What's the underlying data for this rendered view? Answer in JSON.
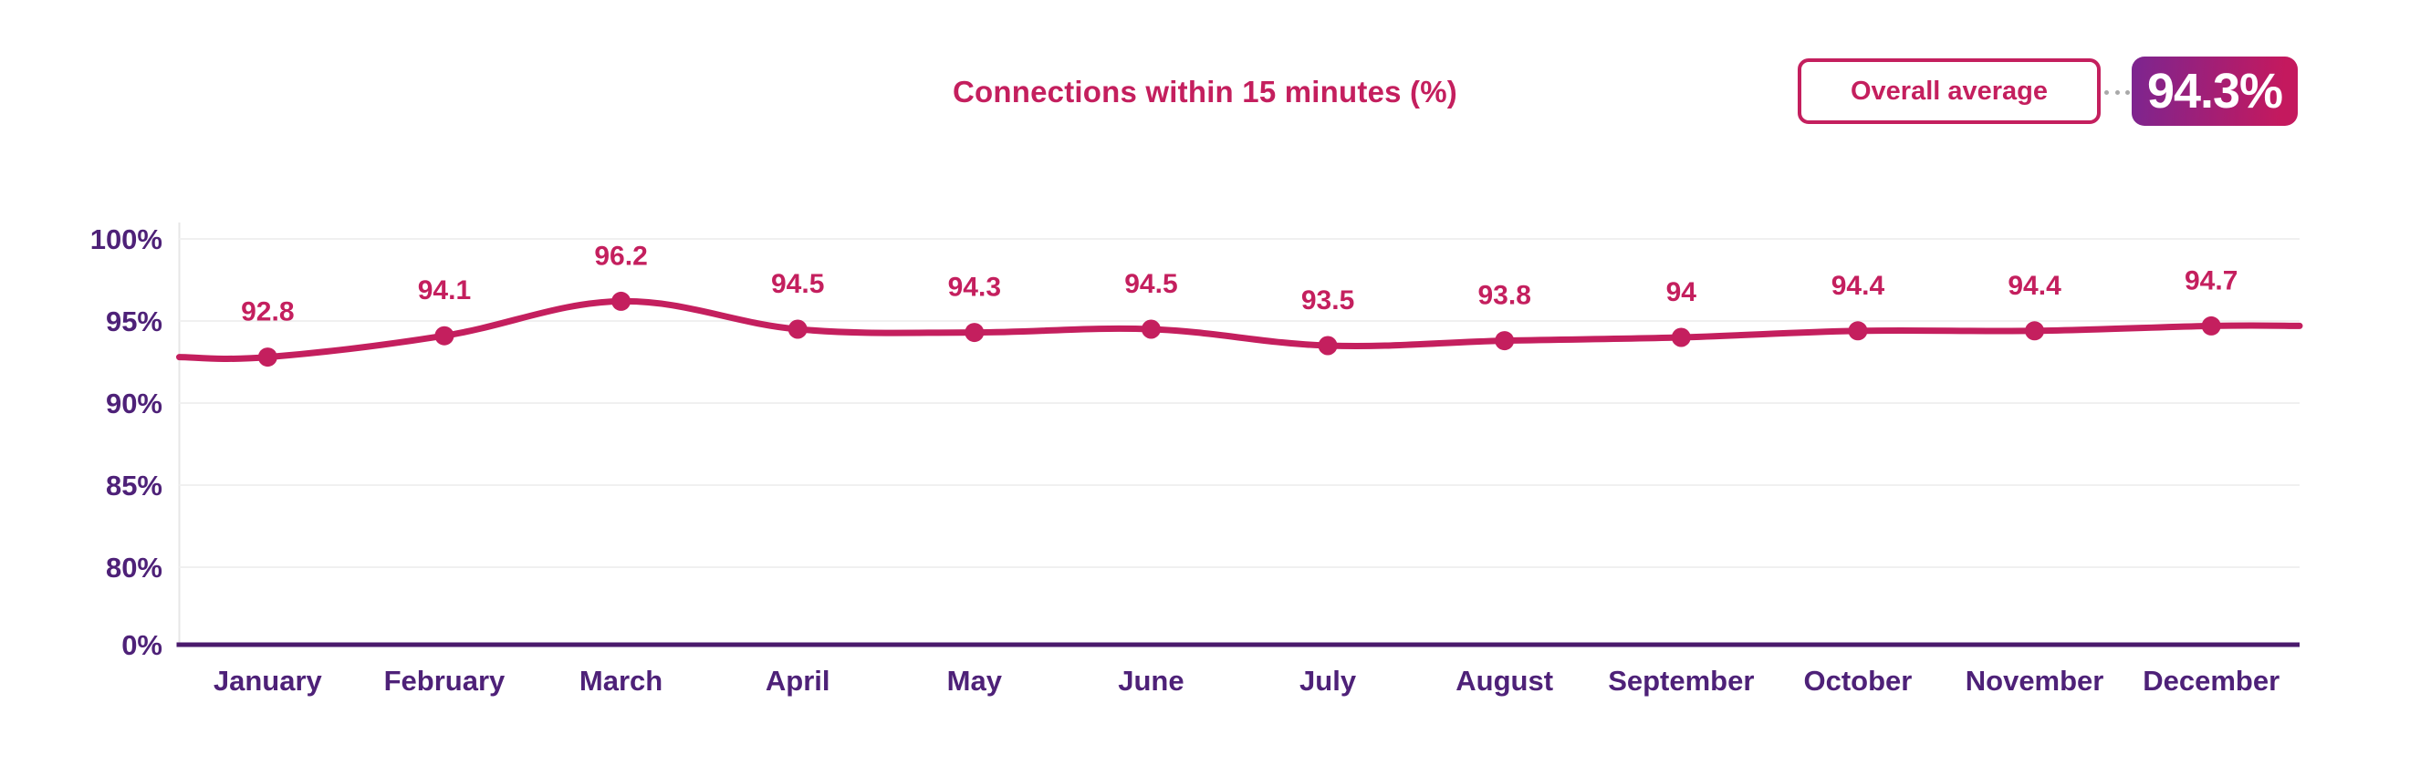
{
  "header": {
    "title": "Connections within 15 minutes (%)",
    "overall_average_label": "Overall average",
    "overall_average_value": "94.3%"
  },
  "chart_data": {
    "type": "line",
    "title": "Connections within 15 minutes (%)",
    "categories": [
      "January",
      "February",
      "March",
      "April",
      "May",
      "June",
      "July",
      "August",
      "September",
      "October",
      "November",
      "December"
    ],
    "series": [
      {
        "name": "Connections within 15 minutes (%)",
        "values": [
          92.8,
          94.1,
          96.2,
          94.5,
          94.3,
          94.5,
          93.5,
          93.8,
          94,
          94.4,
          94.4,
          94.7
        ],
        "display_labels": [
          "92.8",
          "94.1",
          "96.2",
          "94.5",
          "94.3",
          "94.5",
          "93.5",
          "93.8",
          "94",
          "94.4",
          "94.4",
          "94.7"
        ]
      }
    ],
    "overall_average": 94.3,
    "y_axis": {
      "tick_labels": [
        "100%",
        "95%",
        "90%",
        "85%",
        "80%",
        "0%"
      ],
      "data_range": [
        80,
        100
      ],
      "broken_axis": true
    },
    "xlabel": "",
    "ylabel": "",
    "legend": "none",
    "grid": "horizontal-light",
    "line_smooth": true,
    "colors": {
      "line": "#C41F5E",
      "point": "#C41F5E",
      "value_label": "#C41F5E",
      "axis_text": "#4E2178",
      "axis_line": "#4A1A6C",
      "gridline": "#F0F0F0",
      "left_axis_line": "#E7E7E7",
      "title": "#C41F5E",
      "badge_gradient_start": "#7C2590",
      "badge_gradient_end": "#C4195E",
      "badge_text": "#FFFFFF",
      "connector_dots": "#A9A9A9"
    }
  }
}
